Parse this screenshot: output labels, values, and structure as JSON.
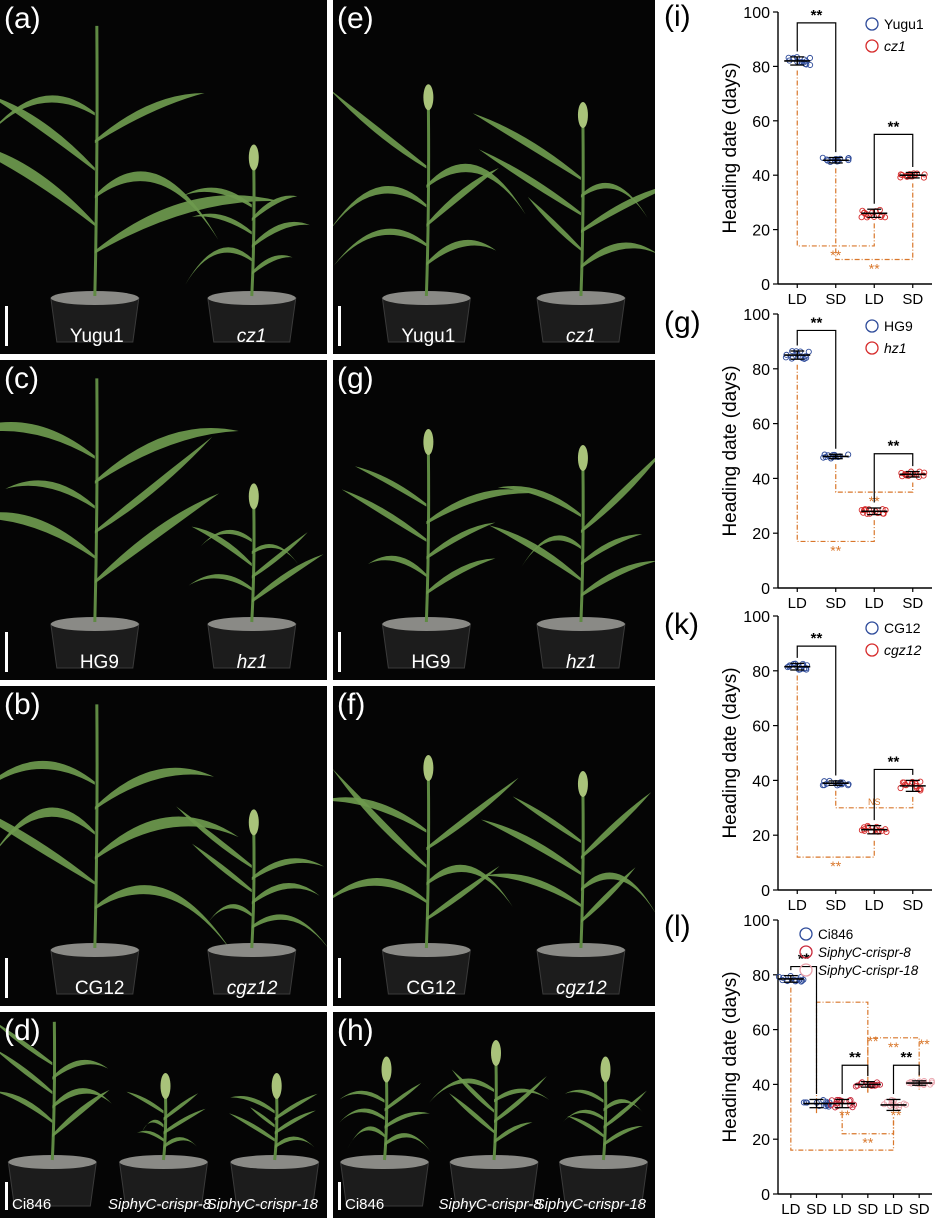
{
  "figure": {
    "photos": [
      {
        "id": "a",
        "letter": "(a)",
        "labels": [
          {
            "text": "Yugu1",
            "italic": false
          },
          {
            "text": "cz1",
            "italic": true
          }
        ],
        "tall": [
          true,
          false
        ]
      },
      {
        "id": "e",
        "letter": "(e)",
        "labels": [
          {
            "text": "Yugu1",
            "italic": false
          },
          {
            "text": "cz1",
            "italic": true
          }
        ],
        "tall": [
          true,
          true
        ]
      },
      {
        "id": "c",
        "letter": "(c)",
        "labels": [
          {
            "text": "HG9",
            "italic": false
          },
          {
            "text": "hz1",
            "italic": true
          }
        ],
        "tall": [
          true,
          false
        ]
      },
      {
        "id": "g",
        "letter": "(g)",
        "labels": [
          {
            "text": "HG9",
            "italic": false
          },
          {
            "text": "hz1",
            "italic": true
          }
        ],
        "tall": [
          true,
          true
        ]
      },
      {
        "id": "b",
        "letter": "(b)",
        "labels": [
          {
            "text": "CG12",
            "italic": false
          },
          {
            "text": "cgz12",
            "italic": true
          }
        ],
        "tall": [
          true,
          false
        ]
      },
      {
        "id": "f",
        "letter": "(f)",
        "labels": [
          {
            "text": "CG12",
            "italic": false
          },
          {
            "text": "cgz12",
            "italic": true
          }
        ],
        "tall": [
          true,
          true
        ]
      },
      {
        "id": "d",
        "letter": "(d)",
        "labels": [
          {
            "text": "Ci846",
            "italic": false
          },
          {
            "text": "SiphyC-crispr-8",
            "italic": true
          },
          {
            "text": "SiphyC-crispr-18",
            "italic": true
          }
        ],
        "tall": [
          true,
          false,
          false
        ]
      },
      {
        "id": "h",
        "letter": "(h)",
        "labels": [
          {
            "text": "Ci846",
            "italic": false
          },
          {
            "text": "SiphyC-crispr-8",
            "italic": true
          },
          {
            "text": "SiphyC-crispr-18",
            "italic": true
          }
        ],
        "tall": [
          true,
          true,
          true
        ]
      }
    ]
  },
  "chart_data": [
    {
      "letter": "(i)",
      "type": "scatter",
      "ylabel": "Heading date (days)",
      "ylim": [
        0,
        100
      ],
      "yticks": [
        0,
        20,
        40,
        60,
        80,
        100
      ],
      "categories": [
        "LD",
        "SD",
        "LD",
        "SD"
      ],
      "series": [
        {
          "name": "Yugu1",
          "italic": false,
          "color": "#2e4b9a",
          "groups": [
            {
              "x": 1,
              "mean": 82,
              "sd": 1.5
            },
            {
              "x": 2,
              "mean": 45.5,
              "sd": 1
            }
          ]
        },
        {
          "name": "cz1",
          "italic": true,
          "color": "#d62b2b",
          "groups": [
            {
              "x": 3,
              "mean": 26,
              "sd": 1.5
            },
            {
              "x": 4,
              "mean": 40,
              "sd": 1
            }
          ]
        }
      ],
      "sig": [
        {
          "from": 1,
          "to": 2,
          "y": 96,
          "label": "**",
          "color": "#000"
        },
        {
          "from": 3,
          "to": 4,
          "y": 55,
          "label": "**",
          "color": "#000"
        }
      ],
      "dash": [
        {
          "from": 1,
          "to": 3,
          "y": 14,
          "label": "**"
        },
        {
          "from": 2,
          "to": 4,
          "y": 9,
          "label": "**"
        }
      ]
    },
    {
      "letter": "(g)",
      "type": "scatter",
      "ylabel": "Heading date (days)",
      "ylim": [
        0,
        100
      ],
      "yticks": [
        0,
        20,
        40,
        60,
        80,
        100
      ],
      "categories": [
        "LD",
        "SD",
        "LD",
        "SD"
      ],
      "series": [
        {
          "name": "HG9",
          "italic": false,
          "color": "#2e4b9a",
          "groups": [
            {
              "x": 1,
              "mean": 85,
              "sd": 1.5
            },
            {
              "x": 2,
              "mean": 48,
              "sd": 0.8
            }
          ]
        },
        {
          "name": "hz1",
          "italic": true,
          "color": "#d62b2b",
          "groups": [
            {
              "x": 3,
              "mean": 28,
              "sd": 1.2
            },
            {
              "x": 4,
              "mean": 41.5,
              "sd": 1
            }
          ]
        }
      ],
      "sig": [
        {
          "from": 1,
          "to": 2,
          "y": 94,
          "label": "**",
          "color": "#000"
        },
        {
          "from": 3,
          "to": 4,
          "y": 49,
          "label": "**",
          "color": "#000"
        }
      ],
      "dash": [
        {
          "from": 1,
          "to": 3,
          "y": 17,
          "label": "**"
        },
        {
          "from": 2,
          "to": 4,
          "y": 35,
          "label": "**"
        }
      ]
    },
    {
      "letter": "(k)",
      "type": "scatter",
      "ylabel": "Heading date (days)",
      "ylim": [
        0,
        100
      ],
      "yticks": [
        0,
        20,
        40,
        60,
        80,
        100
      ],
      "categories": [
        "LD",
        "SD",
        "LD",
        "SD"
      ],
      "series": [
        {
          "name": "CG12",
          "italic": false,
          "color": "#2e4b9a",
          "groups": [
            {
              "x": 1,
              "mean": 81.5,
              "sd": 1.2
            },
            {
              "x": 2,
              "mean": 39,
              "sd": 0.8
            }
          ]
        },
        {
          "name": "cgz12",
          "italic": true,
          "color": "#d62b2b",
          "groups": [
            {
              "x": 3,
              "mean": 22,
              "sd": 1.5
            },
            {
              "x": 4,
              "mean": 38,
              "sd": 2
            }
          ]
        }
      ],
      "sig": [
        {
          "from": 1,
          "to": 2,
          "y": 89,
          "label": "**",
          "color": "#000"
        },
        {
          "from": 3,
          "to": 4,
          "y": 44,
          "label": "**",
          "color": "#000"
        }
      ],
      "dash": [
        {
          "from": 1,
          "to": 3,
          "y": 12,
          "label": "**"
        },
        {
          "from": 2,
          "to": 4,
          "y": 30,
          "label": "NS"
        }
      ]
    },
    {
      "letter": "(l)",
      "type": "scatter",
      "ylabel": "Heading date (days)",
      "ylim": [
        0,
        100
      ],
      "yticks": [
        0,
        20,
        40,
        60,
        80,
        100
      ],
      "categories": [
        "LD",
        "SD",
        "LD",
        "SD",
        "LD",
        "SD"
      ],
      "series": [
        {
          "name": "Ci846",
          "italic": false,
          "color": "#2e4b9a",
          "groups": [
            {
              "x": 1,
              "mean": 78.5,
              "sd": 1.2
            },
            {
              "x": 2,
              "mean": 33,
              "sd": 1.5
            }
          ]
        },
        {
          "name": "SiphyC-crispr-8",
          "italic": true,
          "color": "#c8283a",
          "groups": [
            {
              "x": 3,
              "mean": 33,
              "sd": 1.5
            },
            {
              "x": 4,
              "mean": 40,
              "sd": 1
            }
          ]
        },
        {
          "name": "SiphyC-crispr-18",
          "italic": true,
          "color": "#e8a0aa",
          "groups": [
            {
              "x": 5,
              "mean": 32.5,
              "sd": 2
            },
            {
              "x": 6,
              "mean": 40.5,
              "sd": 0.8
            }
          ]
        }
      ],
      "sig": [
        {
          "from": 1,
          "to": 2,
          "y": 83,
          "label": "**",
          "color": "#000"
        },
        {
          "from": 3,
          "to": 4,
          "y": 47,
          "label": "**",
          "color": "#000"
        },
        {
          "from": 5,
          "to": 6,
          "y": 47,
          "label": "**",
          "color": "#000"
        }
      ],
      "dash": [
        {
          "from": 1,
          "to": 5,
          "y": 16,
          "label": ""
        },
        {
          "from": 2,
          "to": 4,
          "y": 70,
          "label": ""
        },
        {
          "from": 3,
          "to": 5,
          "y": 22,
          "label": "**"
        },
        {
          "from": 4,
          "to": 6,
          "y": 57,
          "label": "**"
        }
      ],
      "dash_labels": [
        {
          "x": 3.1,
          "y": 27,
          "label": "**"
        },
        {
          "x": 5.1,
          "y": 27,
          "label": "**"
        },
        {
          "x": 4.2,
          "y": 54,
          "label": "**"
        },
        {
          "x": 6.2,
          "y": 53,
          "label": "**"
        }
      ]
    }
  ]
}
